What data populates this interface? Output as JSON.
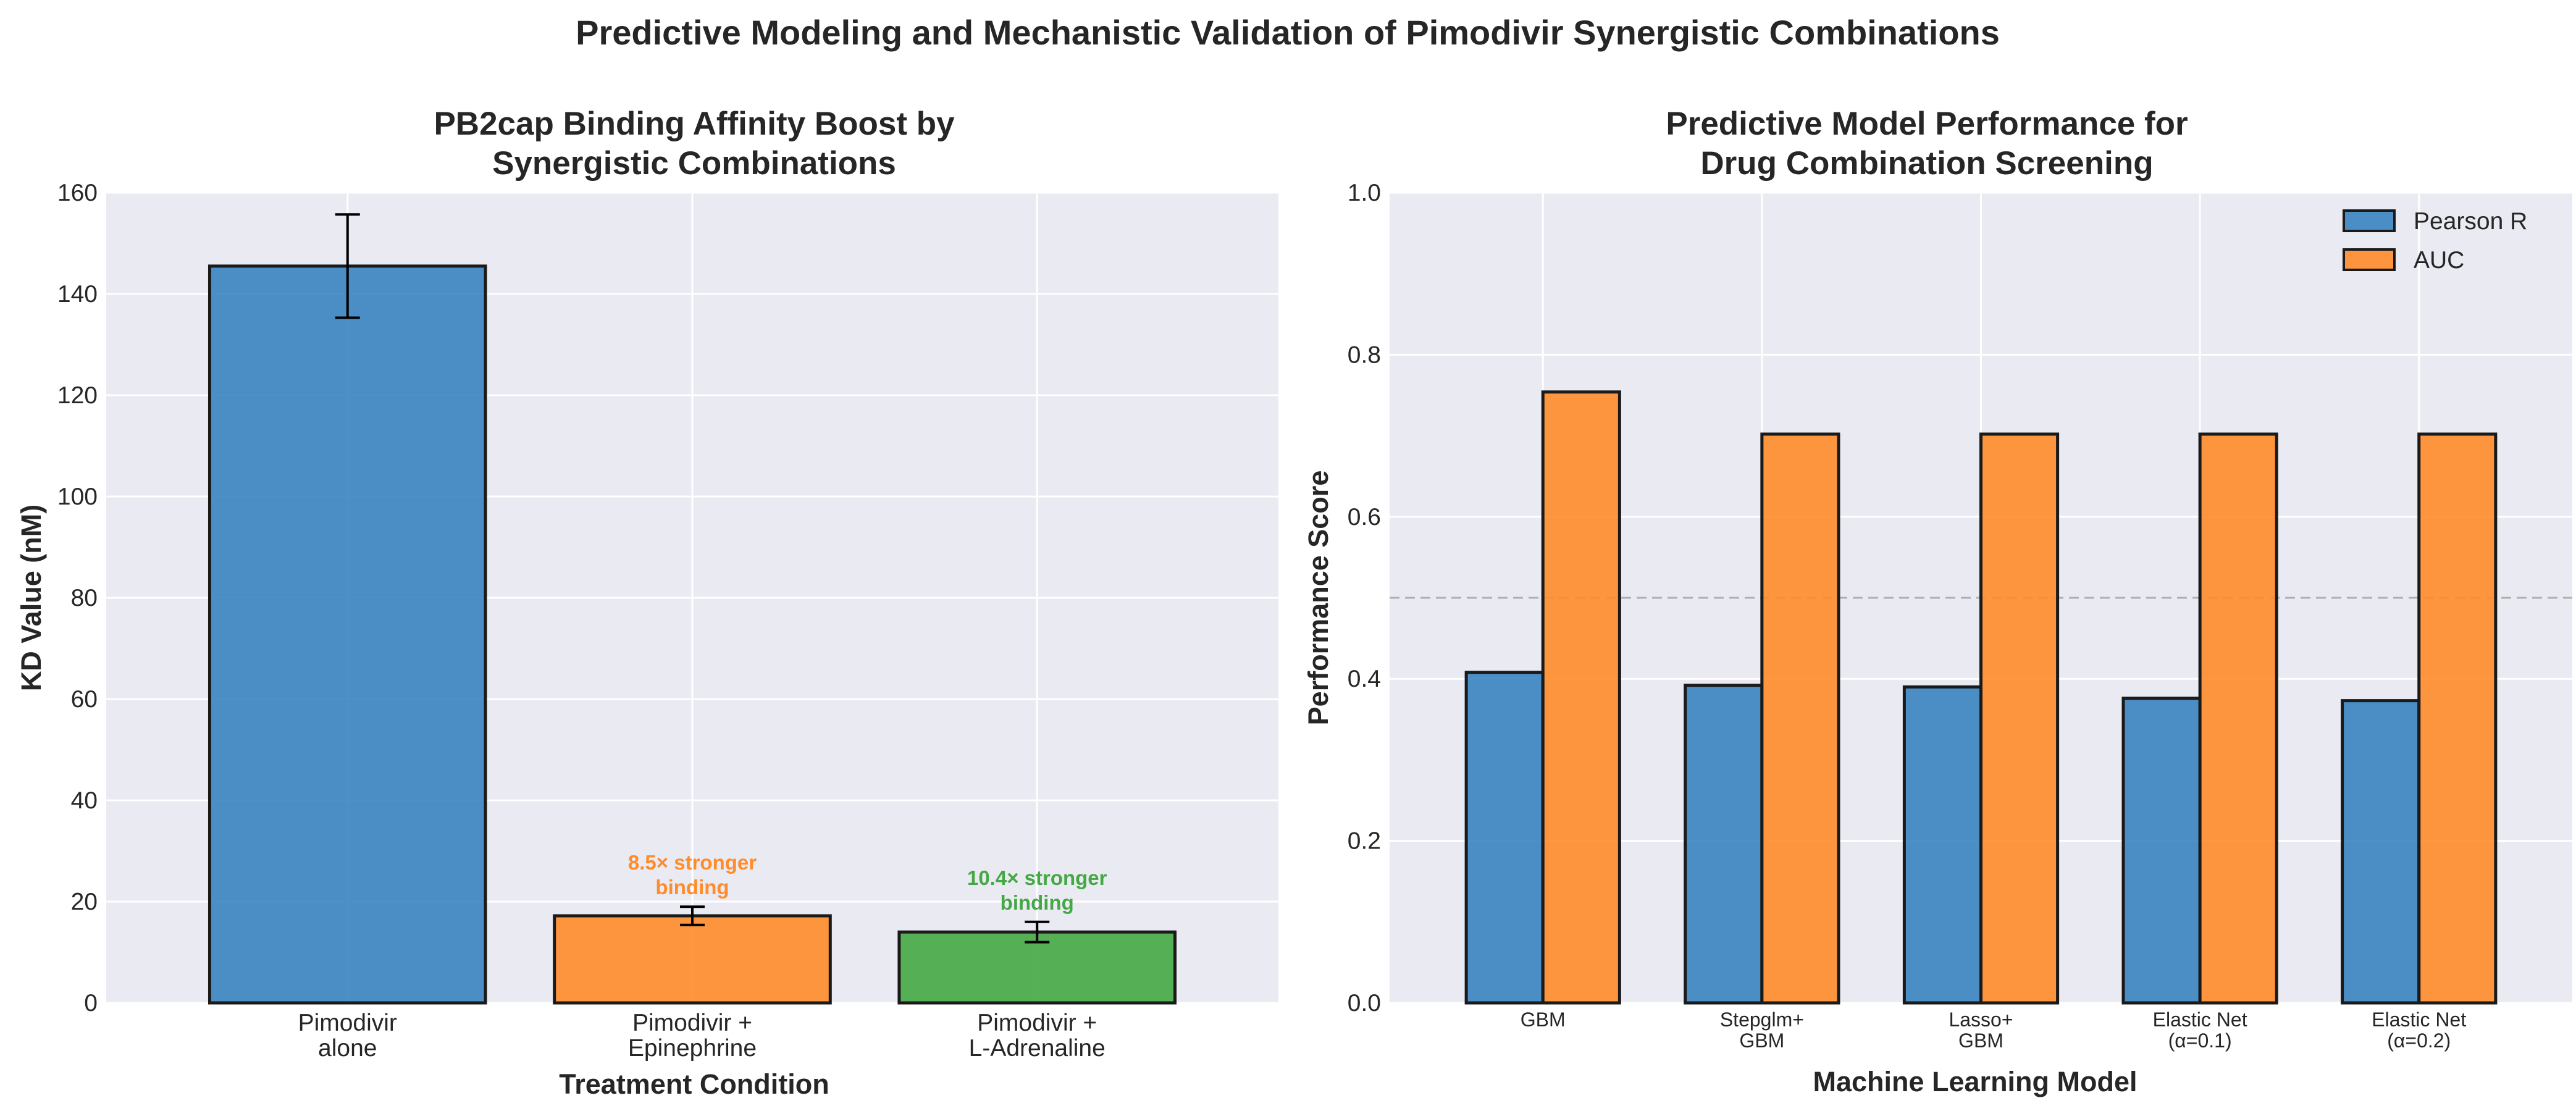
{
  "figure_title": "Predictive Modeling and Mechanistic Validation of Pimodivir Synergistic Combinations",
  "colors": {
    "blue": "#3a83c0",
    "orange": "#ff8c2a",
    "green": "#44a844",
    "plot_bg": "#eaeaf2",
    "edge": "#1a1a1a"
  },
  "chart_data": [
    {
      "type": "bar",
      "title_lines": [
        "PB2cap Binding Affinity Boost by",
        "Synergistic Combinations"
      ],
      "xlabel": "Treatment Condition",
      "ylabel": "KD Value (nM)",
      "ylim": [
        0,
        160
      ],
      "yticks": [
        "0",
        "20",
        "40",
        "60",
        "80",
        "100",
        "120",
        "140",
        "160"
      ],
      "grid": true,
      "categories": [
        [
          "Pimodivir",
          "alone"
        ],
        [
          "Pimodivir +",
          "Epinephrine"
        ],
        [
          "Pimodivir +",
          "L-Adrenaline"
        ]
      ],
      "values": [
        145.5,
        17.2,
        14.0
      ],
      "errors": [
        10.2,
        1.8,
        2.0
      ],
      "bar_colors": [
        "blue",
        "orange",
        "green"
      ],
      "annotations": [
        null,
        {
          "lines": [
            "8.5× stronger",
            "binding"
          ],
          "color": "orange"
        },
        {
          "lines": [
            "10.4× stronger",
            "binding"
          ],
          "color": "green"
        }
      ]
    },
    {
      "type": "bar",
      "title_lines": [
        "Predictive Model Performance for",
        "Drug Combination Screening"
      ],
      "xlabel": "Machine Learning Model",
      "ylabel": "Performance Score",
      "ylim": [
        0,
        1.0
      ],
      "yticks": [
        "0.0",
        "0.2",
        "0.4",
        "0.6",
        "0.8",
        "1.0"
      ],
      "grid": true,
      "reference_line": 0.5,
      "legend_position": "top-right",
      "categories": [
        [
          "GBM"
        ],
        [
          "Stepglm+",
          "GBM"
        ],
        [
          "Lasso+",
          "GBM"
        ],
        [
          "Elastic Net",
          "(α=0.1)"
        ],
        [
          "Elastic Net",
          "(α=0.2)"
        ]
      ],
      "series": [
        {
          "name": "Pearson R",
          "color": "blue",
          "values": [
            0.408,
            0.392,
            0.39,
            0.376,
            0.373
          ]
        },
        {
          "name": "AUC",
          "color": "orange",
          "values": [
            0.754,
            0.702,
            0.702,
            0.702,
            0.702
          ]
        }
      ]
    }
  ]
}
